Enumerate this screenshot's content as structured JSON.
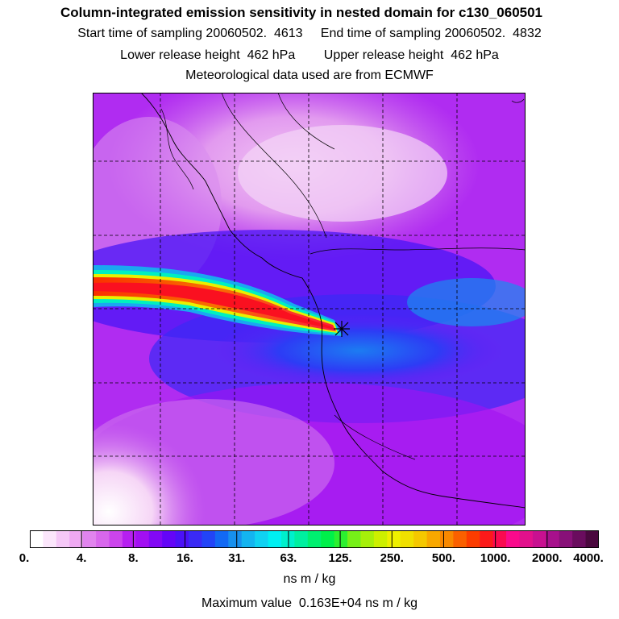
{
  "header": {
    "title": "Column-integrated emission sensitivity in nested domain for c130_060501",
    "line1": "Start time of sampling 20060502.  4613     End time of sampling 20060502.  4832",
    "line2": "Lower release height  462 hPa        Upper release height  462 hPa",
    "line3": "Meteorological data used are from ECMWF"
  },
  "colorbar": {
    "unit": "ns m / kg",
    "ticks": [
      "0.",
      "4.",
      "8.",
      "16.",
      "31.",
      "63.",
      "125.",
      "250.",
      "500.",
      "1000.",
      "2000.",
      "4000."
    ],
    "colors": [
      "#ffffff",
      "#fbe6fb",
      "#f5c8f7",
      "#efa9f2",
      "#e184ee",
      "#d867ec",
      "#cc44ec",
      "#b61ff0",
      "#a20ff2",
      "#8208f5",
      "#6405f7",
      "#4b11f7",
      "#3a2af5",
      "#2244f7",
      "#1269f4",
      "#1790ee",
      "#14b4f0",
      "#10d2f2",
      "#00f0f2",
      "#00f0cc",
      "#00f0a0",
      "#00f070",
      "#00f04a",
      "#2cf030",
      "#76f018",
      "#a6f00a",
      "#cdf000",
      "#eef000",
      "#f0e000",
      "#f5c800",
      "#f8a800",
      "#f88800",
      "#fa6000",
      "#fc3c00",
      "#fc1a1a",
      "#fa0a50",
      "#fa0a8c",
      "#e2108c",
      "#c81090",
      "#a8108c",
      "#881078",
      "#6a0c5e",
      "#4a083e"
    ],
    "max_text": "Maximum value  0.163E+04 ns m / kg"
  },
  "map": {
    "release_marker": "asterisk-marker",
    "gridlines": "dashed"
  }
}
